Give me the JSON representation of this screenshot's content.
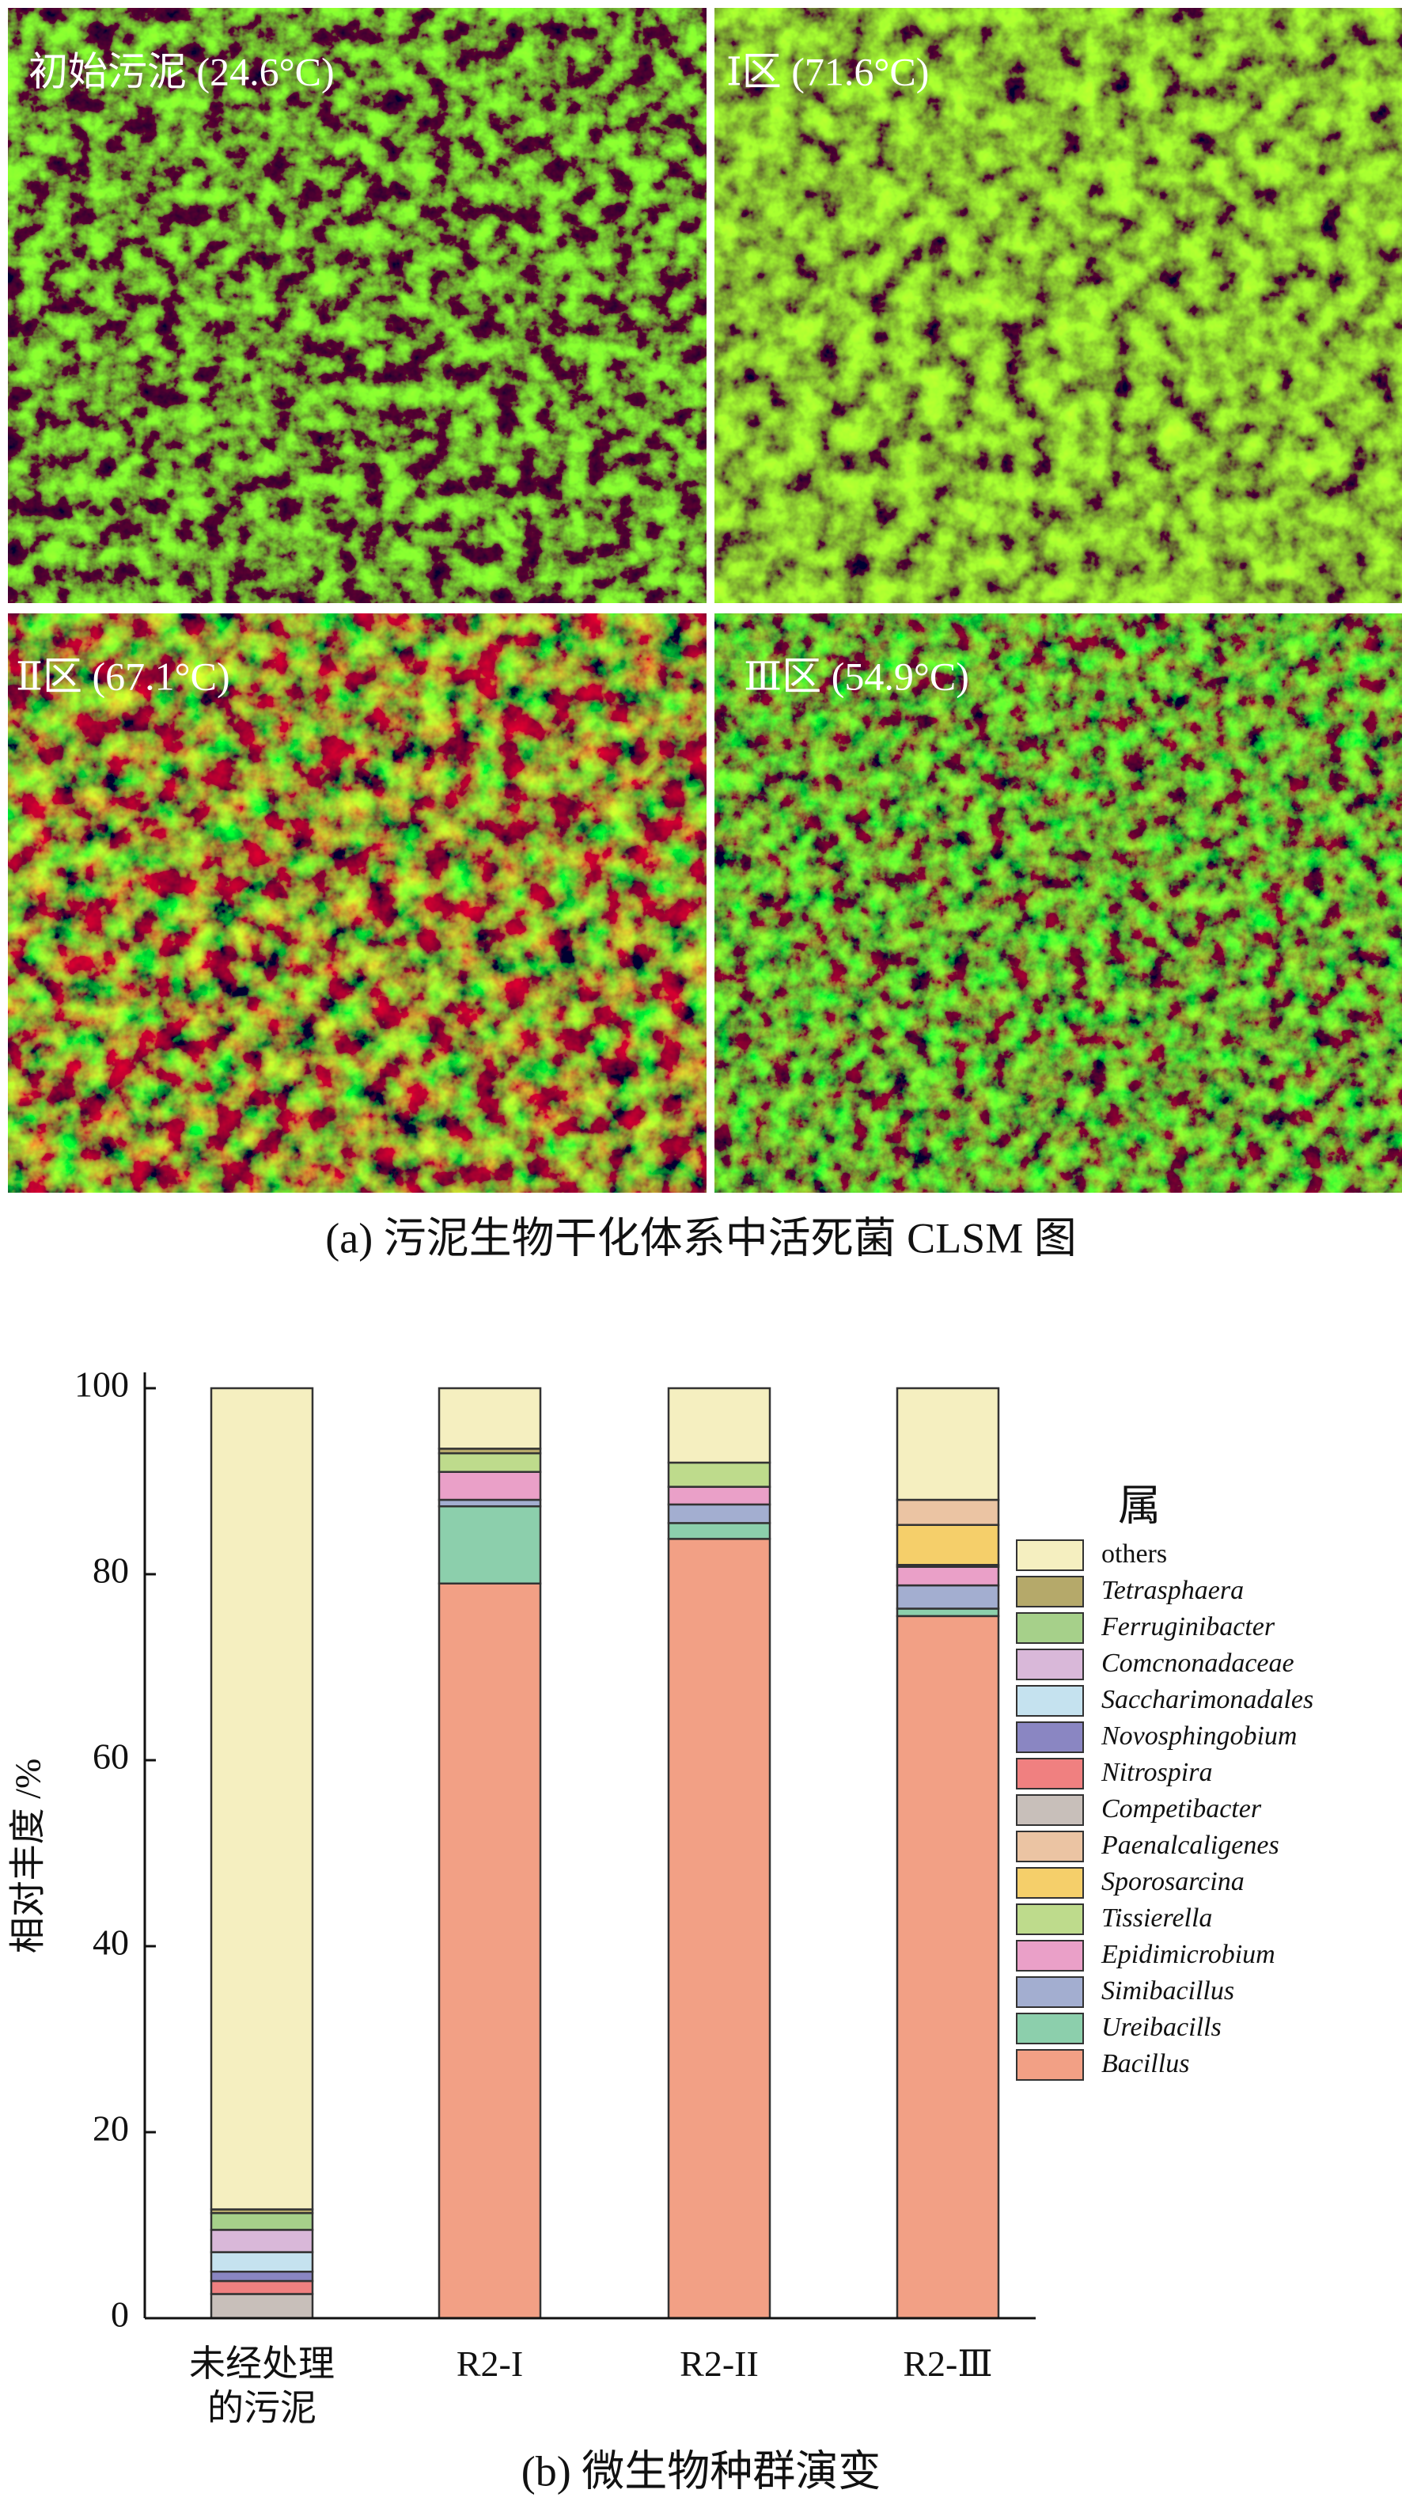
{
  "panel_a": {
    "labels": [
      "初始污泥 (24.6°C)",
      "Ⅰ区 (71.6°C)",
      "Ⅱ区 (67.1°C)",
      "Ⅲ区 (54.9°C)"
    ],
    "caption": "(a) 污泥生物干化体系中活死菌 CLSM 图"
  },
  "chart_data": {
    "type": "stacked_bar",
    "caption": "(b) 微生物种群演变",
    "ylabel": "相对丰度 /%",
    "legend_title": "属",
    "categories": [
      "未经处理\n的污泥",
      "R2-I",
      "R2-II",
      "R2-Ⅲ"
    ],
    "ylim": [
      0,
      100
    ],
    "yticks": [
      0,
      20,
      40,
      60,
      80,
      100
    ],
    "series": [
      {
        "name": "Bacillus",
        "color": "#f2a085",
        "italic": true,
        "values": [
          0,
          79,
          83.8,
          75.5
        ]
      },
      {
        "name": "Ureibacills",
        "color": "#8ccfac",
        "italic": true,
        "values": [
          0,
          8.3,
          1.7,
          0.8
        ]
      },
      {
        "name": "Simibacillus",
        "color": "#a3aed0",
        "italic": true,
        "values": [
          0,
          0.7,
          2.0,
          2.5
        ]
      },
      {
        "name": "Epidimicrobium",
        "color": "#eaa0c8",
        "italic": true,
        "values": [
          0,
          3.0,
          1.9,
          2.0
        ]
      },
      {
        "name": "Tissierella",
        "color": "#bedb8c",
        "italic": true,
        "values": [
          0,
          2.0,
          2.6,
          0.2
        ]
      },
      {
        "name": "Sporosarcina",
        "color": "#f5cf6a",
        "italic": true,
        "values": [
          0,
          0,
          0,
          4.3
        ]
      },
      {
        "name": "Paenalcaligenes",
        "color": "#ebc4a3",
        "italic": true,
        "values": [
          0,
          0,
          0,
          2.7
        ]
      },
      {
        "name": "Competibacter",
        "color": "#c8bfba",
        "italic": true,
        "values": [
          2.6,
          0,
          0,
          0
        ]
      },
      {
        "name": "Nitrospira",
        "color": "#f08080",
        "italic": true,
        "values": [
          1.4,
          0,
          0,
          0
        ]
      },
      {
        "name": "Novosphingobium",
        "color": "#8a86c2",
        "italic": true,
        "values": [
          1.0,
          0,
          0,
          0
        ]
      },
      {
        "name": "Saccharimonadales",
        "color": "#c5e2ef",
        "italic": true,
        "values": [
          2.1,
          0,
          0,
          0
        ]
      },
      {
        "name": "Comcnonadaceae",
        "color": "#d9b8d9",
        "italic": true,
        "values": [
          2.4,
          0,
          0,
          0
        ]
      },
      {
        "name": "Ferruginibacter",
        "color": "#a6d08a",
        "italic": true,
        "values": [
          1.8,
          0,
          0,
          0
        ]
      },
      {
        "name": "Tetrasphaera",
        "color": "#b5a96a",
        "italic": true,
        "values": [
          0.4,
          0.5,
          0,
          0
        ]
      },
      {
        "name": "others",
        "color": "#f5efc0",
        "italic": false,
        "values": [
          88.3,
          6.5,
          8.0,
          12.0
        ]
      }
    ]
  }
}
